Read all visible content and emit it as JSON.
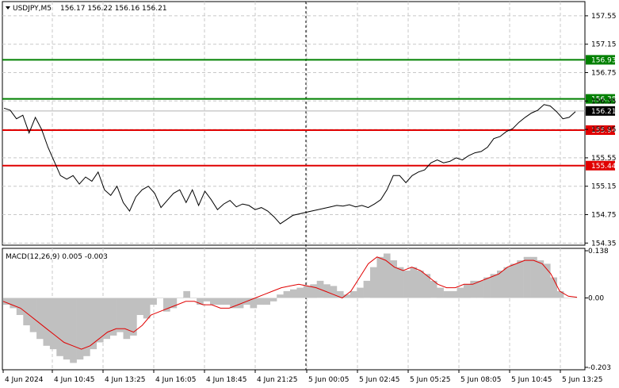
{
  "chart_data": [
    {
      "type": "line",
      "header": {
        "symbol": "USDJPY,M5",
        "ohlc": "156.17 156.22 156.16 156.21"
      },
      "y_ticks": [
        "157.55",
        "157.15",
        "156.75",
        "156.35",
        "155.95",
        "155.55",
        "155.15",
        "154.75",
        "154.35"
      ],
      "ylim": [
        154.32,
        157.75
      ],
      "x_ticks": [
        "4 Jun 2024",
        "4 Jun 10:45",
        "4 Jun 13:25",
        "4 Jun 16:05",
        "4 Jun 18:45",
        "4 Jun 21:25",
        "5 Jun 00:05",
        "5 Jun 02:45",
        "5 Jun 05:25",
        "5 Jun 08:05",
        "5 Jun 10:45",
        "5 Jun 13:25"
      ],
      "vertical_marker_at": "5 Jun 00:05",
      "levels": [
        {
          "value": 156.93,
          "label": "156.93",
          "color": "#008000"
        },
        {
          "value": 156.38,
          "label": "156.38",
          "color": "#008000"
        },
        {
          "value": 155.94,
          "label": "155.94",
          "color": "#e00000"
        },
        {
          "value": 155.44,
          "label": "155.44",
          "color": "#e00000"
        }
      ],
      "current_price": {
        "value": 156.21,
        "label": "156.21"
      },
      "price": [
        156.25,
        156.22,
        156.1,
        156.15,
        155.9,
        156.12,
        155.95,
        155.7,
        155.5,
        155.3,
        155.25,
        155.3,
        155.18,
        155.28,
        155.22,
        155.35,
        155.1,
        155.02,
        155.15,
        154.92,
        154.8,
        155.0,
        155.1,
        155.15,
        155.05,
        154.85,
        154.95,
        155.05,
        155.1,
        154.92,
        155.1,
        154.88,
        155.08,
        154.96,
        154.82,
        154.9,
        154.95,
        154.86,
        154.9,
        154.88,
        154.82,
        154.85,
        154.8,
        154.72,
        154.62,
        154.68,
        154.74,
        154.76,
        154.78,
        154.8,
        154.82,
        154.84,
        154.86,
        154.88,
        154.87,
        154.89,
        154.86,
        154.88,
        154.85,
        154.9,
        154.96,
        155.1,
        155.3,
        155.3,
        155.2,
        155.3,
        155.35,
        155.38,
        155.48,
        155.52,
        155.48,
        155.5,
        155.55,
        155.52,
        155.58,
        155.62,
        155.64,
        155.7,
        155.82,
        155.85,
        155.92,
        155.96,
        156.05,
        156.12,
        156.18,
        156.22,
        156.3,
        156.28,
        156.2,
        156.1,
        156.12,
        156.2
      ],
      "macd_panel": {
        "label": "MACD(12,26,9) 0.005 -0.003",
        "y_ticks": [
          "0.138",
          "0.00",
          "-0.203"
        ],
        "ylim": [
          -0.21,
          0.145
        ],
        "histogram": [
          -0.02,
          -0.03,
          -0.05,
          -0.08,
          -0.1,
          -0.12,
          -0.14,
          -0.15,
          -0.17,
          -0.18,
          -0.19,
          -0.18,
          -0.17,
          -0.15,
          -0.13,
          -0.12,
          -0.11,
          -0.1,
          -0.12,
          -0.11,
          -0.05,
          -0.06,
          -0.02,
          0.0,
          -0.04,
          -0.03,
          0.0,
          0.02,
          0.0,
          -0.02,
          -0.01,
          -0.02,
          -0.02,
          -0.02,
          -0.03,
          -0.03,
          -0.02,
          -0.03,
          -0.02,
          -0.02,
          -0.01,
          0.01,
          0.02,
          0.025,
          0.03,
          0.035,
          0.04,
          0.05,
          0.04,
          0.035,
          0.02,
          0.01,
          0.02,
          0.03,
          0.05,
          0.09,
          0.12,
          0.13,
          0.11,
          0.09,
          0.08,
          0.09,
          0.08,
          0.07,
          0.05,
          0.03,
          0.02,
          0.02,
          0.03,
          0.04,
          0.05,
          0.05,
          0.06,
          0.07,
          0.08,
          0.09,
          0.1,
          0.11,
          0.12,
          0.12,
          0.11,
          0.1,
          0.06,
          0.02,
          0.0,
          0.0
        ],
        "signal": [
          -0.01,
          -0.02,
          -0.03,
          -0.05,
          -0.07,
          -0.09,
          -0.11,
          -0.13,
          -0.14,
          -0.15,
          -0.14,
          -0.12,
          -0.1,
          -0.09,
          -0.09,
          -0.1,
          -0.08,
          -0.05,
          -0.04,
          -0.03,
          -0.02,
          -0.01,
          -0.01,
          -0.02,
          -0.02,
          -0.03,
          -0.03,
          -0.02,
          -0.01,
          0.0,
          0.01,
          0.02,
          0.03,
          0.035,
          0.04,
          0.035,
          0.03,
          0.02,
          0.01,
          0.0,
          0.02,
          0.06,
          0.1,
          0.12,
          0.11,
          0.09,
          0.08,
          0.09,
          0.08,
          0.06,
          0.04,
          0.03,
          0.03,
          0.04,
          0.04,
          0.05,
          0.06,
          0.07,
          0.09,
          0.1,
          0.11,
          0.11,
          0.1,
          0.07,
          0.02,
          0.005,
          0.002
        ]
      }
    }
  ]
}
